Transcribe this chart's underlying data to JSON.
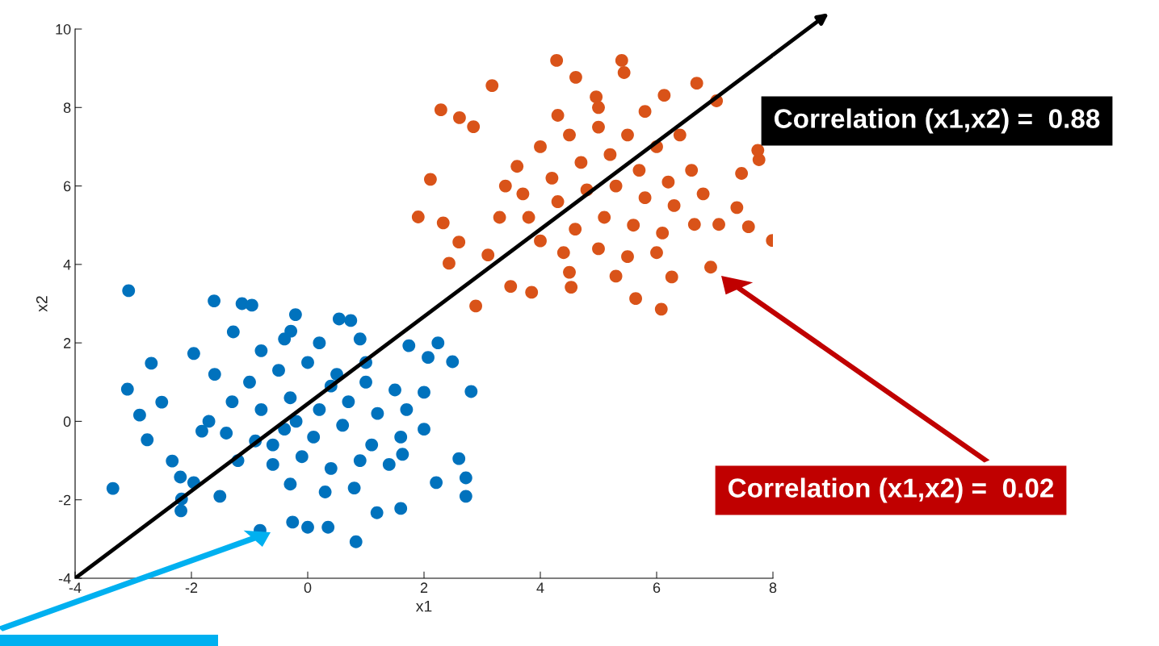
{
  "chart_data": {
    "type": "scatter",
    "xlabel": "x1",
    "ylabel": "x2",
    "xlim": [
      -4,
      8
    ],
    "ylim": [
      -4,
      10
    ],
    "xticks": [
      -4,
      -2,
      0,
      2,
      4,
      6,
      8
    ],
    "yticks": [
      -4,
      -2,
      0,
      2,
      4,
      6,
      8,
      10
    ],
    "grid": false,
    "legend": false,
    "marker": "circle",
    "series": [
      {
        "color": "#0072bd",
        "x": [
          -3.08,
          -3.35,
          -3.1,
          -1.61,
          -1.13,
          -0.96,
          -0.21,
          0.54,
          -2.69,
          -2.89,
          -2.76,
          2.72,
          2.72,
          2.6,
          2.81,
          2.49,
          2.24,
          0.83,
          0.35,
          -0.82,
          -2.18,
          -2.17,
          -2.19,
          -2.33,
          1.19,
          1.6,
          -0.26,
          0.0,
          -1.82,
          -0.29,
          -1.28,
          0.74,
          1.74,
          2.07,
          2.0,
          1.63,
          2.21,
          -2.51,
          -1.96,
          -1.96,
          -1.51,
          -1,
          -0.5,
          0,
          0.5,
          1,
          1.5,
          -1.3,
          -0.8,
          -0.3,
          0.2,
          0.7,
          1.2,
          1.7,
          -1.4,
          -0.9,
          -0.4,
          0.1,
          0.6,
          1.1,
          1.6,
          -1.2,
          -0.6,
          -0.1,
          0.4,
          0.9,
          1.4,
          -0.3,
          0.3,
          0.8,
          -0.8,
          0.2,
          -0.2,
          0.4,
          -0.6,
          1.0,
          -1.7,
          -1.6,
          2.0,
          -0.4,
          0.9
        ],
        "values": [
          3.33,
          -1.71,
          0.82,
          3.07,
          3.0,
          2.96,
          2.72,
          2.61,
          1.48,
          0.16,
          -0.47,
          -1.91,
          -1.44,
          -0.95,
          0.76,
          1.52,
          2.0,
          -3.07,
          -2.7,
          -2.78,
          -2.28,
          -1.98,
          -1.42,
          -1.01,
          -2.33,
          -2.22,
          -2.57,
          -2.7,
          -0.25,
          2.3,
          2.28,
          2.57,
          1.93,
          1.63,
          0.74,
          -0.84,
          -1.56,
          0.49,
          1.73,
          -1.56,
          -1.91,
          1,
          1.3,
          1.5,
          1.2,
          1,
          0.8,
          0.5,
          0.3,
          0.6,
          0.3,
          0.5,
          0.2,
          0.3,
          -0.3,
          -0.5,
          -0.2,
          -0.4,
          -0.1,
          -0.6,
          -0.4,
          -1.0,
          -1.1,
          -0.9,
          -1.2,
          -1.0,
          -1.1,
          -1.6,
          -1.8,
          -1.7,
          1.8,
          2.0,
          0.0,
          0.9,
          -0.6,
          1.5,
          0.0,
          1.2,
          -0.2,
          2.1,
          2.1
        ]
      },
      {
        "color": "#d95319",
        "x": [
          4.28,
          5.4,
          5.44,
          3.17,
          2.29,
          2.61,
          2.85,
          2.11,
          1.9,
          2.33,
          2.6,
          2.43,
          2.89,
          3.49,
          3.85,
          4.53,
          5.64,
          6.08,
          6.93,
          7.99,
          7.58,
          7.38,
          7.46,
          7.76,
          6.69,
          7.03,
          7.74,
          7.07,
          4.96,
          6.13,
          4.61,
          3.1,
          6.26,
          6.65,
          3.6,
          4,
          4.5,
          5,
          5.5,
          6,
          3.7,
          4.2,
          4.7,
          5.2,
          5.7,
          6.2,
          3.8,
          4.3,
          4.8,
          5.3,
          5.8,
          6.3,
          6.6,
          4.0,
          4.6,
          5.1,
          5.6,
          6.1,
          4.4,
          5.0,
          5.5,
          6.0,
          3.4,
          3.3,
          4.3,
          5.0,
          5.8,
          6.4,
          6.8,
          4.5,
          5.3
        ],
        "values": [
          9.2,
          9.2,
          8.89,
          8.56,
          7.94,
          7.74,
          7.51,
          6.17,
          5.21,
          5.06,
          4.57,
          4.03,
          2.94,
          3.44,
          3.29,
          3.42,
          3.13,
          2.86,
          3.93,
          4.61,
          4.96,
          5.45,
          6.32,
          6.67,
          8.62,
          8.17,
          6.91,
          5.02,
          8.27,
          8.31,
          8.77,
          4.24,
          3.68,
          5.02,
          6.5,
          7,
          7.3,
          7.5,
          7.3,
          7,
          5.8,
          6.2,
          6.6,
          6.8,
          6.4,
          6.1,
          5.2,
          5.6,
          5.9,
          6.0,
          5.7,
          5.5,
          6.4,
          4.6,
          4.9,
          5.2,
          5.0,
          4.8,
          4.3,
          4.4,
          4.2,
          4.3,
          6.0,
          5.2,
          7.8,
          8.0,
          7.9,
          7.3,
          5.8,
          3.8,
          3.7
        ]
      },
      {
        "type": "line",
        "marker": "none",
        "color": "#000000",
        "x": [
          -4,
          8
        ],
        "values": [
          -4,
          9.34
        ]
      }
    ],
    "annotations": [
      "Correlation (x1,x2) =  0.88",
      "Correlation (x1,x2) =  0.02"
    ]
  }
}
